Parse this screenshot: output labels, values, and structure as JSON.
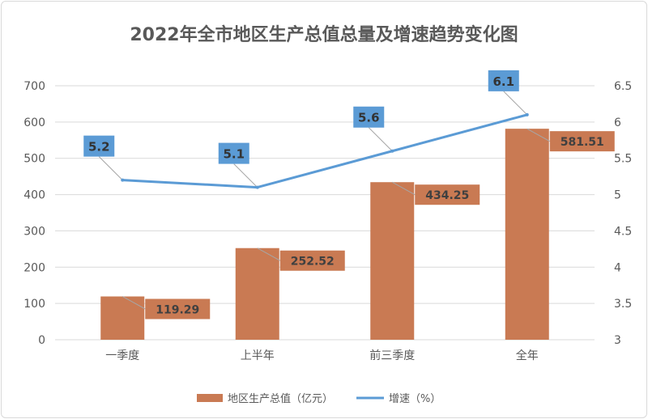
{
  "chart_data": {
    "type": "bar+line",
    "title": "2022年全市地区生产总值总量及增速趋势变化图",
    "categories": [
      "一季度",
      "上半年",
      "前三季度",
      "全年"
    ],
    "series": [
      {
        "name": "地区生产总值（亿元）",
        "type": "bar",
        "axis": "left",
        "color": "#c97a53",
        "values": [
          119.29,
          252.52,
          434.25,
          581.51
        ],
        "labels": [
          "119.29",
          "252.52",
          "434.25",
          "581.51"
        ]
      },
      {
        "name": "增速（%）",
        "type": "line",
        "axis": "right",
        "color": "#5b9bd5",
        "values": [
          5.2,
          5.1,
          5.6,
          6.1
        ],
        "labels": [
          "5.2",
          "5.1",
          "5.6",
          "6.1"
        ]
      }
    ],
    "y_left": {
      "range": [
        0,
        700
      ],
      "ticks": [
        "0",
        "100",
        "200",
        "300",
        "400",
        "500",
        "600",
        "700"
      ]
    },
    "y_right": {
      "range": [
        3,
        6.5
      ],
      "ticks": [
        "3",
        "3.5",
        "4",
        "4.5",
        "5",
        "5.5",
        "6",
        "6.5"
      ]
    },
    "grid": true,
    "legend": "bottom"
  }
}
